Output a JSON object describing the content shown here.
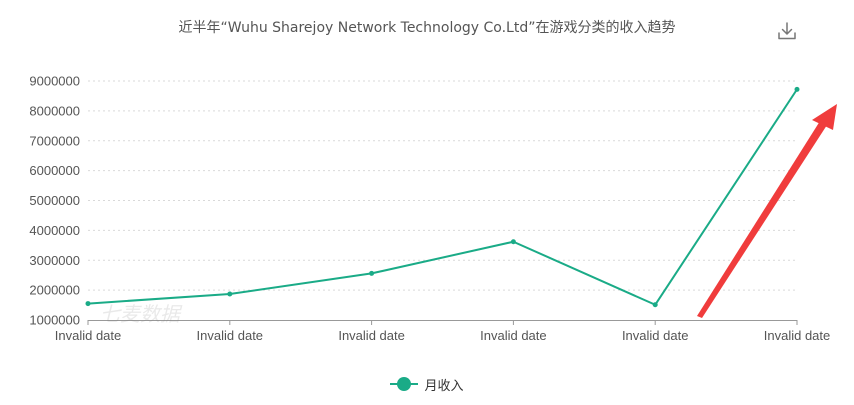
{
  "chart_data": {
    "type": "line",
    "title": "近半年“Wuhu Sharejoy Network Technology Co.Ltd”在游戏分类的收入趋势",
    "categories": [
      "Invalid date",
      "Invalid date",
      "Invalid date",
      "Invalid date",
      "Invalid date",
      "Invalid date"
    ],
    "series": [
      {
        "name": "月收入",
        "values": [
          1550000,
          1870000,
          2560000,
          3620000,
          1510000,
          8720000
        ]
      }
    ],
    "y_ticks": [
      "1000000",
      "2000000",
      "3000000",
      "4000000",
      "5000000",
      "6000000",
      "7000000",
      "8000000",
      "9000000"
    ],
    "ylim": [
      1000000,
      9000000
    ],
    "grid": true,
    "legend_position": "bottom-center",
    "colors": {
      "series": "#1aab87",
      "arrow": "#f03c3c",
      "grid": "#d9d9d9",
      "axis": "#999999"
    }
  },
  "toolbar": {
    "download_icon": "download-icon"
  },
  "watermark": "七麦数据"
}
